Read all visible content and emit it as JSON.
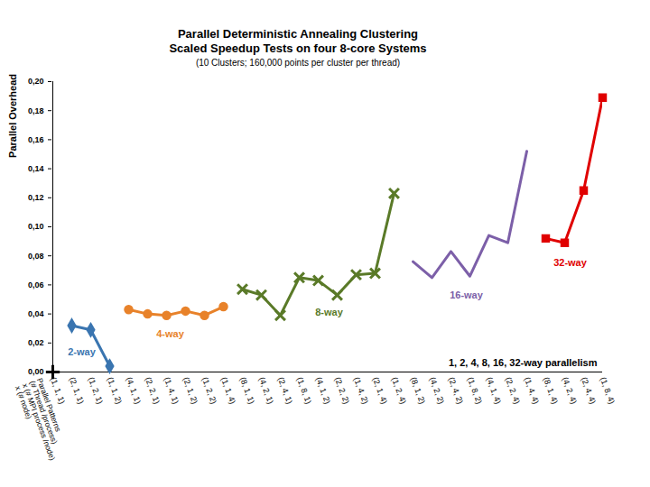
{
  "chart_data": {
    "type": "line",
    "title": "Parallel Deterministic Annealing Clustering\nScaled Speedup Tests on four 8-core Systems",
    "subtitle": "(10 Clusters; 160,000 points per cluster per thread)",
    "xlabel": "Parallel Patterns\n(# Thread /process)\nx (# MPI process /node)\nx (# node)",
    "ylabel": "Parallel Overhead",
    "categories": [
      "(1, 1, 1)",
      "(2, 1, 1)",
      "(1, 2, 1)",
      "(1, 1, 2)",
      "(4, 1, 1)",
      "(2, 2, 1)",
      "(1, 4, 1)",
      "(2, 1, 2)",
      "(1, 2, 2)",
      "(1, 1, 4)",
      "(8, 1, 1)",
      "(4, 2, 1)",
      "(2, 4, 1)",
      "(1, 8, 1)",
      "(4, 1, 2)",
      "(2, 2, 2)",
      "(1, 4, 2)",
      "(2, 1, 4)",
      "(1, 2, 4)",
      "(8, 1, 2)",
      "(4, 2, 2)",
      "(2, 4, 2)",
      "(1, 8, 2)",
      "(4, 1, 4)",
      "(2, 2, 4)",
      "(1, 4, 4)",
      "(8, 1, 4)",
      "(4, 2, 4)",
      "(2, 4, 4)",
      "(1, 8, 4)"
    ],
    "series": [
      {
        "color": "#000000",
        "marker": "plus",
        "values": [
          0,
          null,
          null,
          null,
          null,
          null,
          null,
          null,
          null,
          null,
          null,
          null,
          null,
          null,
          null,
          null,
          null,
          null,
          null,
          null,
          null,
          null,
          null,
          null,
          null,
          null,
          null,
          null,
          null,
          null
        ]
      },
      {
        "name": "2-way",
        "color": "#3a75b0",
        "marker": "diamond",
        "values": [
          null,
          0.032,
          0.029,
          0.004,
          null,
          null,
          null,
          null,
          null,
          null,
          null,
          null,
          null,
          null,
          null,
          null,
          null,
          null,
          null,
          null,
          null,
          null,
          null,
          null,
          null,
          null,
          null,
          null,
          null,
          null
        ]
      },
      {
        "name": "4-way",
        "color": "#e8822a",
        "marker": "circle",
        "values": [
          null,
          null,
          null,
          null,
          0.043,
          0.04,
          0.039,
          0.042,
          0.039,
          0.045,
          null,
          null,
          null,
          null,
          null,
          null,
          null,
          null,
          null,
          null,
          null,
          null,
          null,
          null,
          null,
          null,
          null,
          null,
          null,
          null
        ]
      },
      {
        "name": "8-way",
        "color": "#5a7a28",
        "marker": "times",
        "values": [
          null,
          null,
          null,
          null,
          null,
          null,
          null,
          null,
          null,
          null,
          0.057,
          0.053,
          0.039,
          0.065,
          0.063,
          0.053,
          0.067,
          0.068,
          0.123,
          null,
          null,
          null,
          null,
          null,
          null,
          null,
          null,
          null,
          null,
          null
        ]
      },
      {
        "name": "16-way",
        "color": "#7c5fa8",
        "marker": "none",
        "values": [
          null,
          null,
          null,
          null,
          null,
          null,
          null,
          null,
          null,
          null,
          null,
          null,
          null,
          null,
          null,
          null,
          null,
          null,
          null,
          0.076,
          0.065,
          0.083,
          0.066,
          0.094,
          0.089,
          0.152,
          null,
          null,
          null,
          null
        ]
      },
      {
        "name": "32-way",
        "color": "#e00000",
        "marker": "square",
        "values": [
          null,
          null,
          null,
          null,
          null,
          null,
          null,
          null,
          null,
          null,
          null,
          null,
          null,
          null,
          null,
          null,
          null,
          null,
          null,
          null,
          null,
          null,
          null,
          null,
          null,
          null,
          0.092,
          0.089,
          0.125,
          0.189
        ]
      }
    ],
    "ylim": [
      0,
      0.2
    ],
    "yticks": [
      {
        "value": 0,
        "label": "0,00"
      },
      {
        "value": 0.02,
        "label": "0,02"
      },
      {
        "value": 0.04,
        "label": "0,04"
      },
      {
        "value": 0.06,
        "label": "0,06"
      },
      {
        "value": 0.08,
        "label": "0,08"
      },
      {
        "value": 0.1,
        "label": "0,10"
      },
      {
        "value": 0.12,
        "label": "0,12"
      },
      {
        "value": 0.14,
        "label": "0,14"
      },
      {
        "value": 0.16,
        "label": "0,16"
      },
      {
        "value": 0.18,
        "label": "0,18"
      },
      {
        "value": 0.2,
        "label": "0,20"
      }
    ],
    "grid": false,
    "annotations": [
      "1, 2, 4, 8, 16, 32-way parallelism"
    ]
  }
}
